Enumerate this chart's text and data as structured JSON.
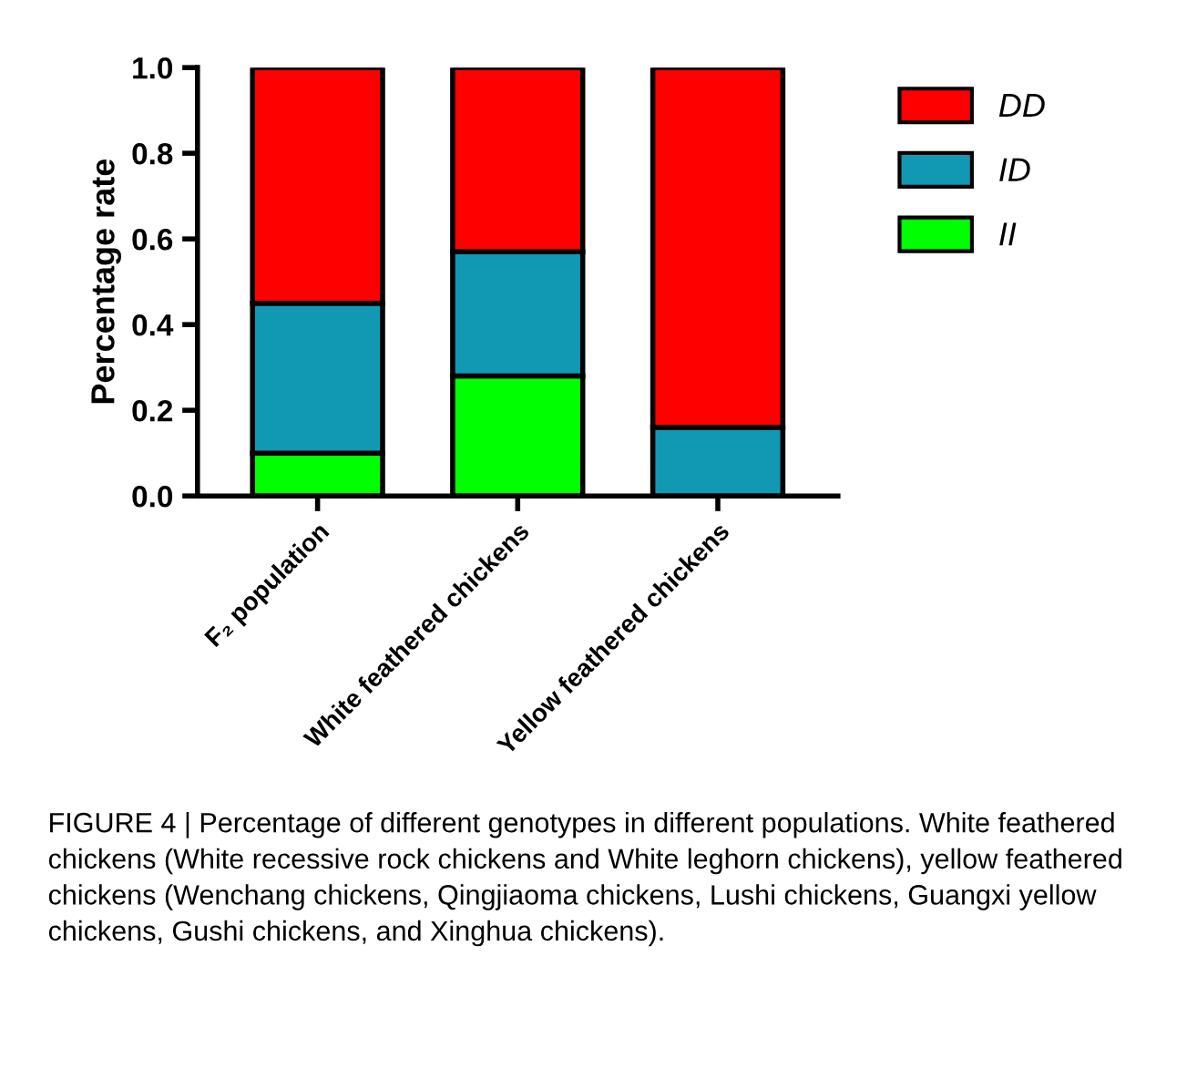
{
  "chart_data": {
    "type": "bar",
    "stacked": true,
    "ylabel": "Percentage rate",
    "categories": [
      "F₂ population",
      "White feathered chickens",
      "Yellow feathered chickens"
    ],
    "series": [
      {
        "name": "II",
        "color": "#00ff00",
        "values": [
          0.1,
          0.28,
          null
        ]
      },
      {
        "name": "ID",
        "color": "#1199b4",
        "values": [
          0.35,
          0.29,
          0.16
        ]
      },
      {
        "name": "DD",
        "color": "#ff0000",
        "values": [
          0.55,
          0.43,
          0.84
        ]
      }
    ],
    "ylim": [
      0,
      1.0
    ],
    "yticks": [
      {
        "value": 0,
        "label": "0.0"
      },
      0.2,
      0.4,
      0.6,
      0.8,
      {
        "value": 1,
        "label": "1.0"
      }
    ],
    "grid": false,
    "legend": "top right",
    "annotations": [
      "FIGURE 4 | Percentage of different genotypes in different populations. White feathered chickens (White recessive rock chickens and White leghorn chickens), yellow feathered chickens (Wenchang chickens, Qingjiaoma chickens, Lushi chickens, Guangxi yellow chickens, Gushi chickens, and Xinghua chickens)."
    ]
  }
}
